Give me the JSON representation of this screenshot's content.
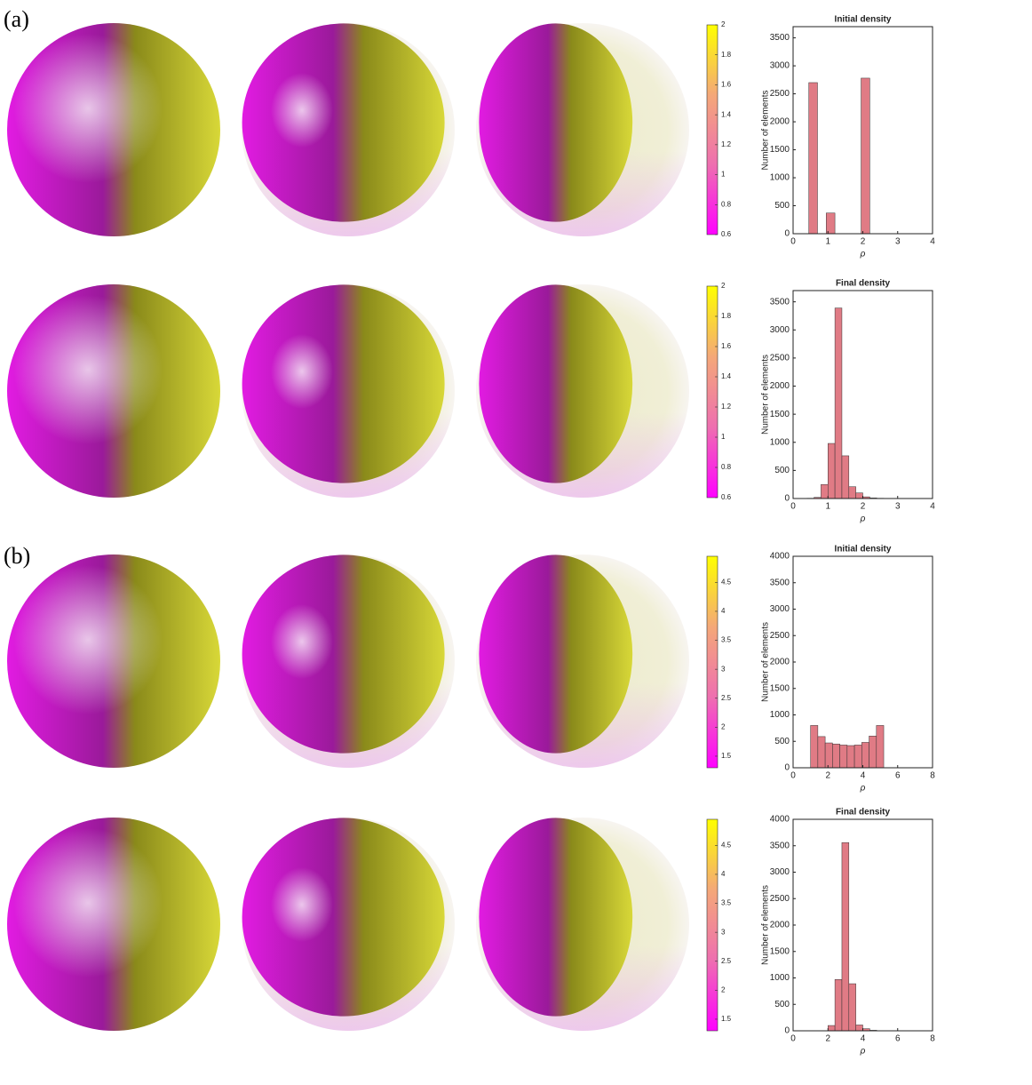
{
  "panel_labels": [
    "(a)",
    "(b)"
  ],
  "chart_data": [
    {
      "type": "colorbar",
      "colors": [
        "#ff00ff",
        "#ee6fb0",
        "#f4a878",
        "#ffff00"
      ],
      "ylim": [
        0.6,
        2
      ],
      "yticks": [
        0.6,
        0.8,
        1,
        1.2,
        1.4,
        1.6,
        1.8,
        2
      ]
    },
    {
      "type": "histogram",
      "title": "Initial density",
      "xlabel": "ρ",
      "ylabel": "Number of elements",
      "color": "#e07b85",
      "bins": [
        0.45,
        0.7,
        0.95,
        1.2,
        1.45,
        1.7,
        1.95,
        2.2
      ],
      "counts": [
        2700,
        0,
        370,
        0,
        0,
        0,
        2780
      ],
      "xlim": [
        0,
        4
      ],
      "xticks": [
        0,
        1,
        2,
        3,
        4
      ],
      "ylim": [
        0,
        3700
      ],
      "yticks": [
        0,
        500,
        1000,
        1500,
        2000,
        2500,
        3000,
        3500
      ]
    },
    {
      "type": "colorbar",
      "colors": [
        "#ff00ff",
        "#ee6fb0",
        "#f4a878",
        "#ffff00"
      ],
      "ylim": [
        0.6,
        2
      ],
      "yticks": [
        0.6,
        0.8,
        1,
        1.2,
        1.4,
        1.6,
        1.8,
        2
      ]
    },
    {
      "type": "histogram",
      "title": "Final density",
      "xlabel": "ρ",
      "ylabel": "Number of elements",
      "color": "#e07b85",
      "bins": [
        0.4,
        0.6,
        0.8,
        1.0,
        1.2,
        1.4,
        1.6,
        1.8,
        2.0,
        2.2,
        2.4,
        2.6
      ],
      "counts": [
        5,
        20,
        250,
        980,
        3390,
        760,
        210,
        100,
        30,
        10,
        5
      ],
      "xlim": [
        0,
        4
      ],
      "xticks": [
        0,
        1,
        2,
        3,
        4
      ],
      "ylim": [
        0,
        3700
      ],
      "yticks": [
        0,
        500,
        1000,
        1500,
        2000,
        2500,
        3000,
        3500
      ]
    },
    {
      "type": "colorbar",
      "colors": [
        "#ff00ff",
        "#ee6fb0",
        "#f4a878",
        "#ffff00"
      ],
      "ylim": [
        1.3,
        4.95
      ],
      "yticks": [
        1.5,
        2,
        2.5,
        3,
        3.5,
        4,
        4.5
      ]
    },
    {
      "type": "histogram",
      "title": "Initial density",
      "xlabel": "ρ",
      "ylabel": "Number of elements",
      "color": "#e07b85",
      "bins": [
        1.0,
        1.42,
        1.84,
        2.26,
        2.68,
        3.1,
        3.52,
        3.94,
        4.36,
        4.78,
        5.2
      ],
      "counts": [
        800,
        590,
        470,
        450,
        430,
        420,
        430,
        480,
        600,
        800
      ],
      "xlim": [
        0,
        8
      ],
      "xticks": [
        0,
        2,
        4,
        6,
        8
      ],
      "ylim": [
        0,
        4000
      ],
      "yticks": [
        0,
        500,
        1000,
        1500,
        2000,
        2500,
        3000,
        3500,
        4000
      ]
    },
    {
      "type": "colorbar",
      "colors": [
        "#ff00ff",
        "#ee6fb0",
        "#f4a878",
        "#ffff00"
      ],
      "ylim": [
        1.3,
        4.95
      ],
      "yticks": [
        1.5,
        2,
        2.5,
        3,
        3.5,
        4,
        4.5
      ]
    },
    {
      "type": "histogram",
      "title": "Final density",
      "xlabel": "ρ",
      "ylabel": "Number of elements",
      "color": "#e07b85",
      "bins": [
        2.0,
        2.4,
        2.8,
        3.2,
        3.6,
        4.0,
        4.4,
        4.8
      ],
      "counts": [
        100,
        970,
        3560,
        890,
        110,
        40,
        10
      ],
      "xlim": [
        0,
        8
      ],
      "xticks": [
        0,
        2,
        4,
        6,
        8
      ],
      "ylim": [
        0,
        4000
      ],
      "yticks": [
        0,
        500,
        1000,
        1500,
        2000,
        2500,
        3000,
        3500,
        4000
      ]
    }
  ]
}
